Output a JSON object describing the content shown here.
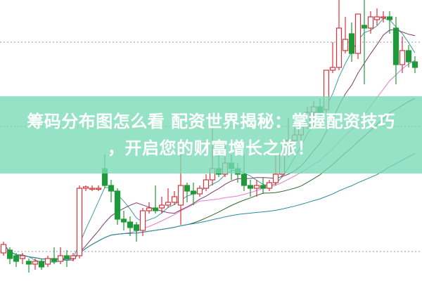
{
  "banner": {
    "title_line1": "筹码分布图怎么看 配资世界揭秘：掌握配资技巧",
    "title_line2": "，开启您的财富增长之旅！"
  },
  "chart_data": {
    "type": "candlestick",
    "grid": "dotted horizontal lines",
    "colors": {
      "up": "#d9323c",
      "down": "#1f9a3a",
      "ma5": "#3a9ea0",
      "ma10": "#7a3d6b",
      "ma20": "#e07ad8",
      "ma30": "#2e6b2e",
      "ma60": "#2a8aa0"
    },
    "moving_averages": [
      5,
      10,
      20,
      30,
      60
    ],
    "candles_ohlc": [
      [
        10,
        13,
        14,
        9
      ],
      [
        11,
        8,
        12,
        6
      ],
      [
        9,
        7,
        10,
        5
      ],
      [
        8,
        9,
        10,
        6
      ],
      [
        7,
        6,
        8,
        3
      ],
      [
        6,
        7,
        8,
        4
      ],
      [
        7,
        5,
        8,
        4
      ],
      [
        6,
        8,
        9,
        5
      ],
      [
        8,
        7,
        12,
        6
      ],
      [
        7,
        9,
        12,
        6
      ],
      [
        9,
        8,
        11,
        5
      ],
      [
        8,
        9,
        10,
        7
      ],
      [
        9,
        33,
        34,
        8
      ],
      [
        33,
        33.5,
        34,
        32
      ],
      [
        33,
        33,
        34,
        32
      ],
      [
        33,
        33,
        34,
        32
      ],
      [
        40,
        34,
        45,
        33
      ],
      [
        34,
        32,
        36,
        28
      ],
      [
        32,
        22,
        33,
        20
      ],
      [
        22,
        21,
        25,
        18
      ],
      [
        21,
        19,
        23,
        16
      ],
      [
        20,
        18,
        21,
        14
      ],
      [
        18,
        25,
        26,
        16
      ],
      [
        25,
        26,
        28,
        24
      ],
      [
        26,
        25,
        34,
        24
      ],
      [
        26,
        27,
        30,
        24
      ],
      [
        27,
        28,
        33,
        26
      ],
      [
        28,
        30,
        32,
        27
      ],
      [
        27,
        34,
        45,
        20
      ],
      [
        34,
        32,
        35,
        28
      ],
      [
        32,
        31,
        35,
        27
      ],
      [
        31,
        33,
        34,
        30
      ],
      [
        33,
        36,
        38,
        32
      ],
      [
        36,
        40,
        55,
        34
      ],
      [
        40,
        38,
        50,
        37
      ],
      [
        38,
        42,
        48,
        37
      ],
      [
        42,
        40,
        45,
        36
      ],
      [
        40,
        38,
        42,
        35
      ],
      [
        38,
        34,
        45,
        32
      ],
      [
        34,
        33,
        36,
        30
      ],
      [
        33,
        34,
        36,
        30
      ],
      [
        34,
        33,
        37,
        31
      ],
      [
        33,
        35,
        36,
        32
      ],
      [
        35,
        38,
        45,
        34
      ],
      [
        38,
        45,
        48,
        37
      ],
      [
        45,
        50,
        58,
        44
      ],
      [
        50,
        52,
        56,
        48
      ],
      [
        52,
        55,
        57,
        50
      ],
      [
        55,
        60,
        62,
        54
      ],
      [
        60,
        62,
        64,
        58
      ],
      [
        62,
        60,
        65,
        58
      ],
      [
        61,
        75,
        75,
        60
      ],
      [
        75,
        76,
        85,
        74
      ],
      [
        76,
        90,
        100,
        75
      ],
      [
        82,
        86,
        94,
        81
      ],
      [
        88,
        81,
        92,
        78
      ],
      [
        81,
        95,
        95,
        79
      ],
      [
        91,
        90,
        100,
        70
      ],
      [
        90,
        94,
        96,
        88
      ],
      [
        93,
        94,
        97,
        91
      ],
      [
        94,
        94,
        96,
        92
      ],
      [
        94,
        93,
        96,
        88
      ],
      [
        90,
        77,
        94,
        70
      ],
      [
        77,
        82,
        87,
        74
      ],
      [
        82,
        78,
        84,
        76
      ],
      [
        78,
        76,
        80,
        74
      ]
    ]
  }
}
